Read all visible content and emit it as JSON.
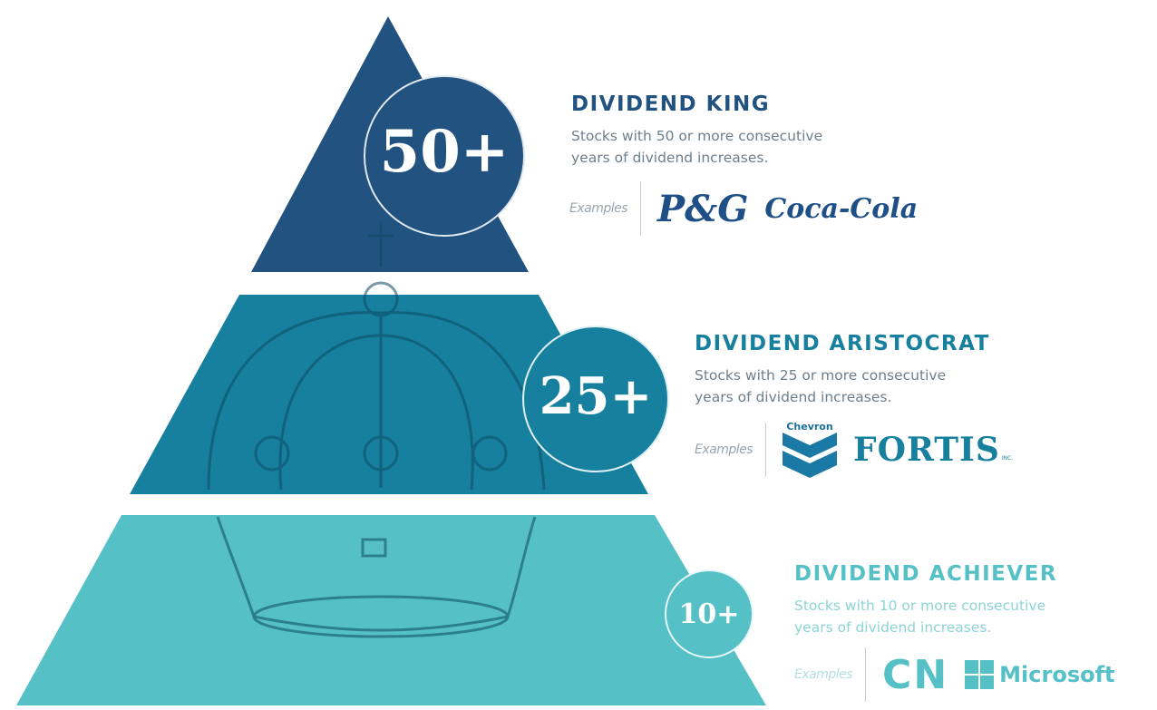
{
  "colors": {
    "king": "#22527f",
    "aristocrat": "#17809e",
    "achiever": "#55c1c7"
  },
  "tiers": [
    {
      "number": "50+",
      "title": "DIVIDEND KING",
      "desc_line1": "Stocks with 50 or more consecutive",
      "desc_line2": "years of dividend increases.",
      "examples_label": "Examples",
      "logos": [
        "P&G",
        "Coca-Cola"
      ]
    },
    {
      "number": "25+",
      "title": "DIVIDEND ARISTOCRAT",
      "desc_line1": "Stocks with 25 or more consecutive",
      "desc_line2": "years of dividend increases.",
      "examples_label": "Examples",
      "logos": [
        "Chevron",
        "FORTIS",
        "INC."
      ]
    },
    {
      "number": "10+",
      "title": "DIVIDEND ACHIEVER",
      "desc_line1": "Stocks with 10 or more consecutive",
      "desc_line2": "years of dividend increases.",
      "examples_label": "Examples",
      "logos": [
        "CN",
        "Microsoft"
      ]
    }
  ]
}
